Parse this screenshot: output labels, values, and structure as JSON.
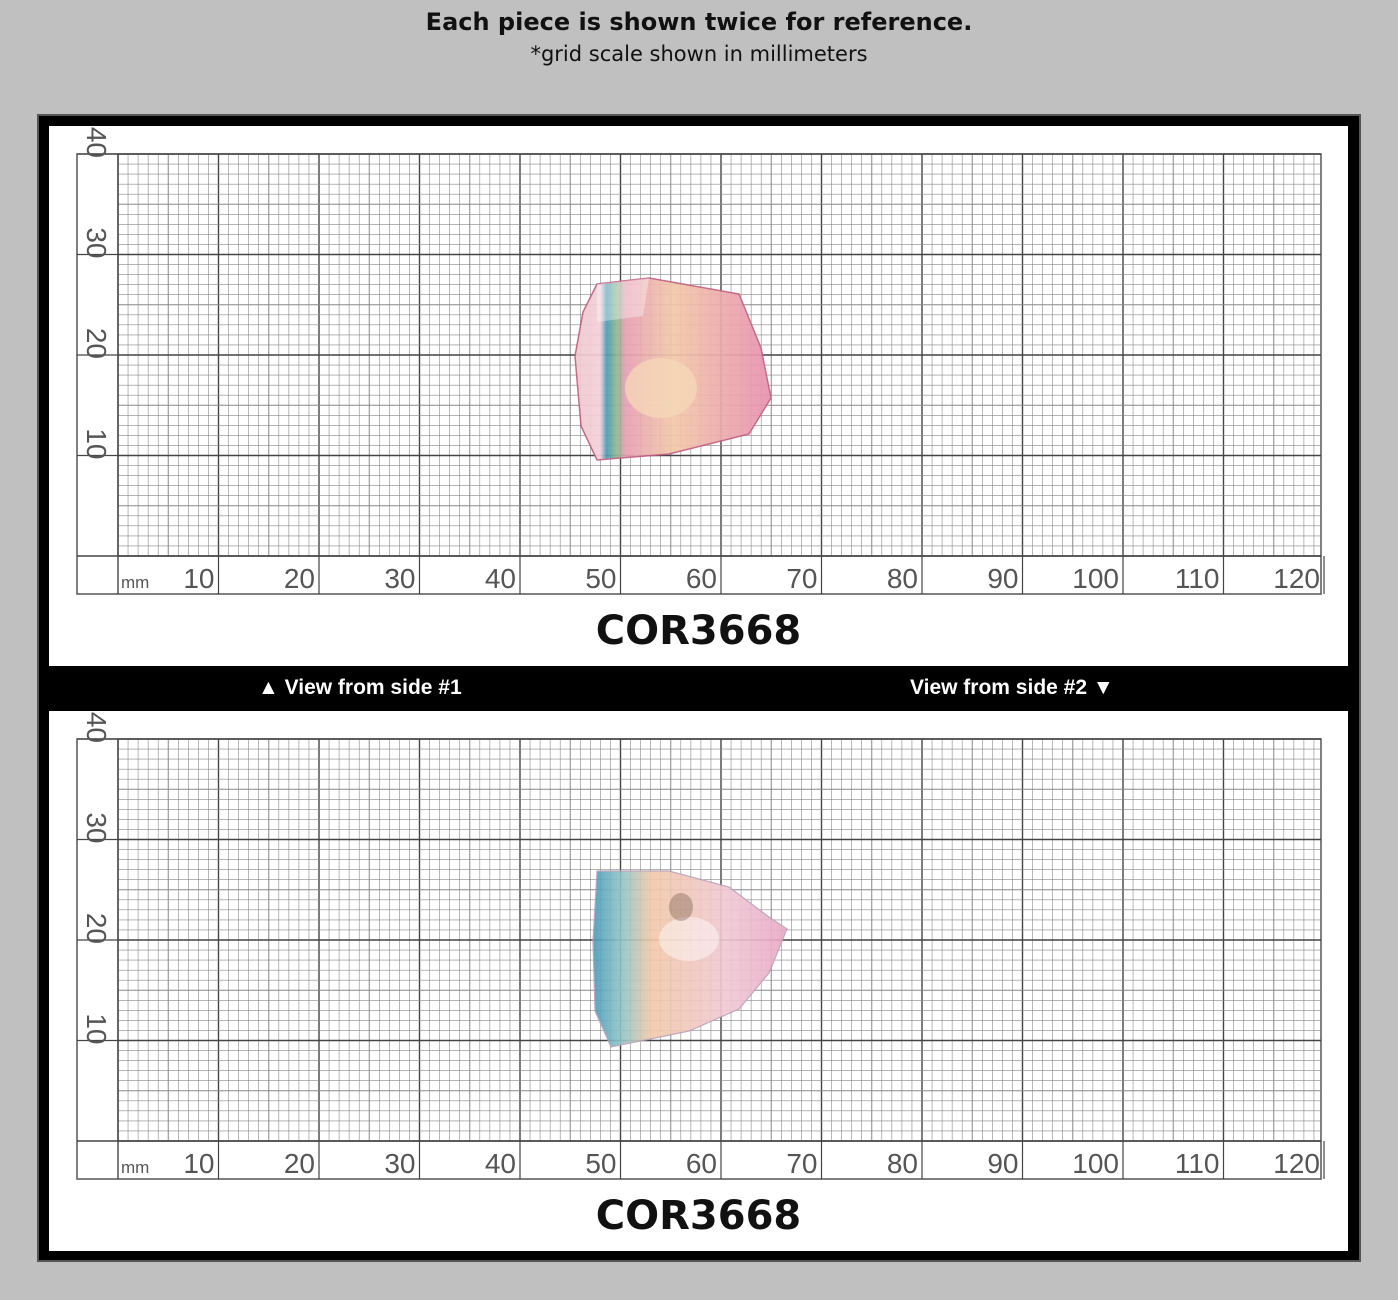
{
  "header": {
    "title": "Each piece is shown twice for reference.",
    "subtitle": "*grid scale shown in millimeters"
  },
  "views": {
    "side1_label": "▲ View from side #1",
    "side2_label": "View from side #2 ▼"
  },
  "specimen": {
    "code": "COR3668",
    "colors": {
      "pink": "#e8a0b4",
      "blue": "#4a9ab8",
      "peach": "#f2c8a8"
    }
  },
  "scale": {
    "unit_label": "mm",
    "x_ticks": [
      "10",
      "20",
      "30",
      "40",
      "50",
      "60",
      "70",
      "80",
      "90",
      "100",
      "110",
      "120"
    ],
    "y_ticks": [
      "10",
      "20",
      "30",
      "40"
    ]
  },
  "colors": {
    "page_bg": "#c0c0c0",
    "frame": "#000000",
    "grid_line": "#555555"
  }
}
